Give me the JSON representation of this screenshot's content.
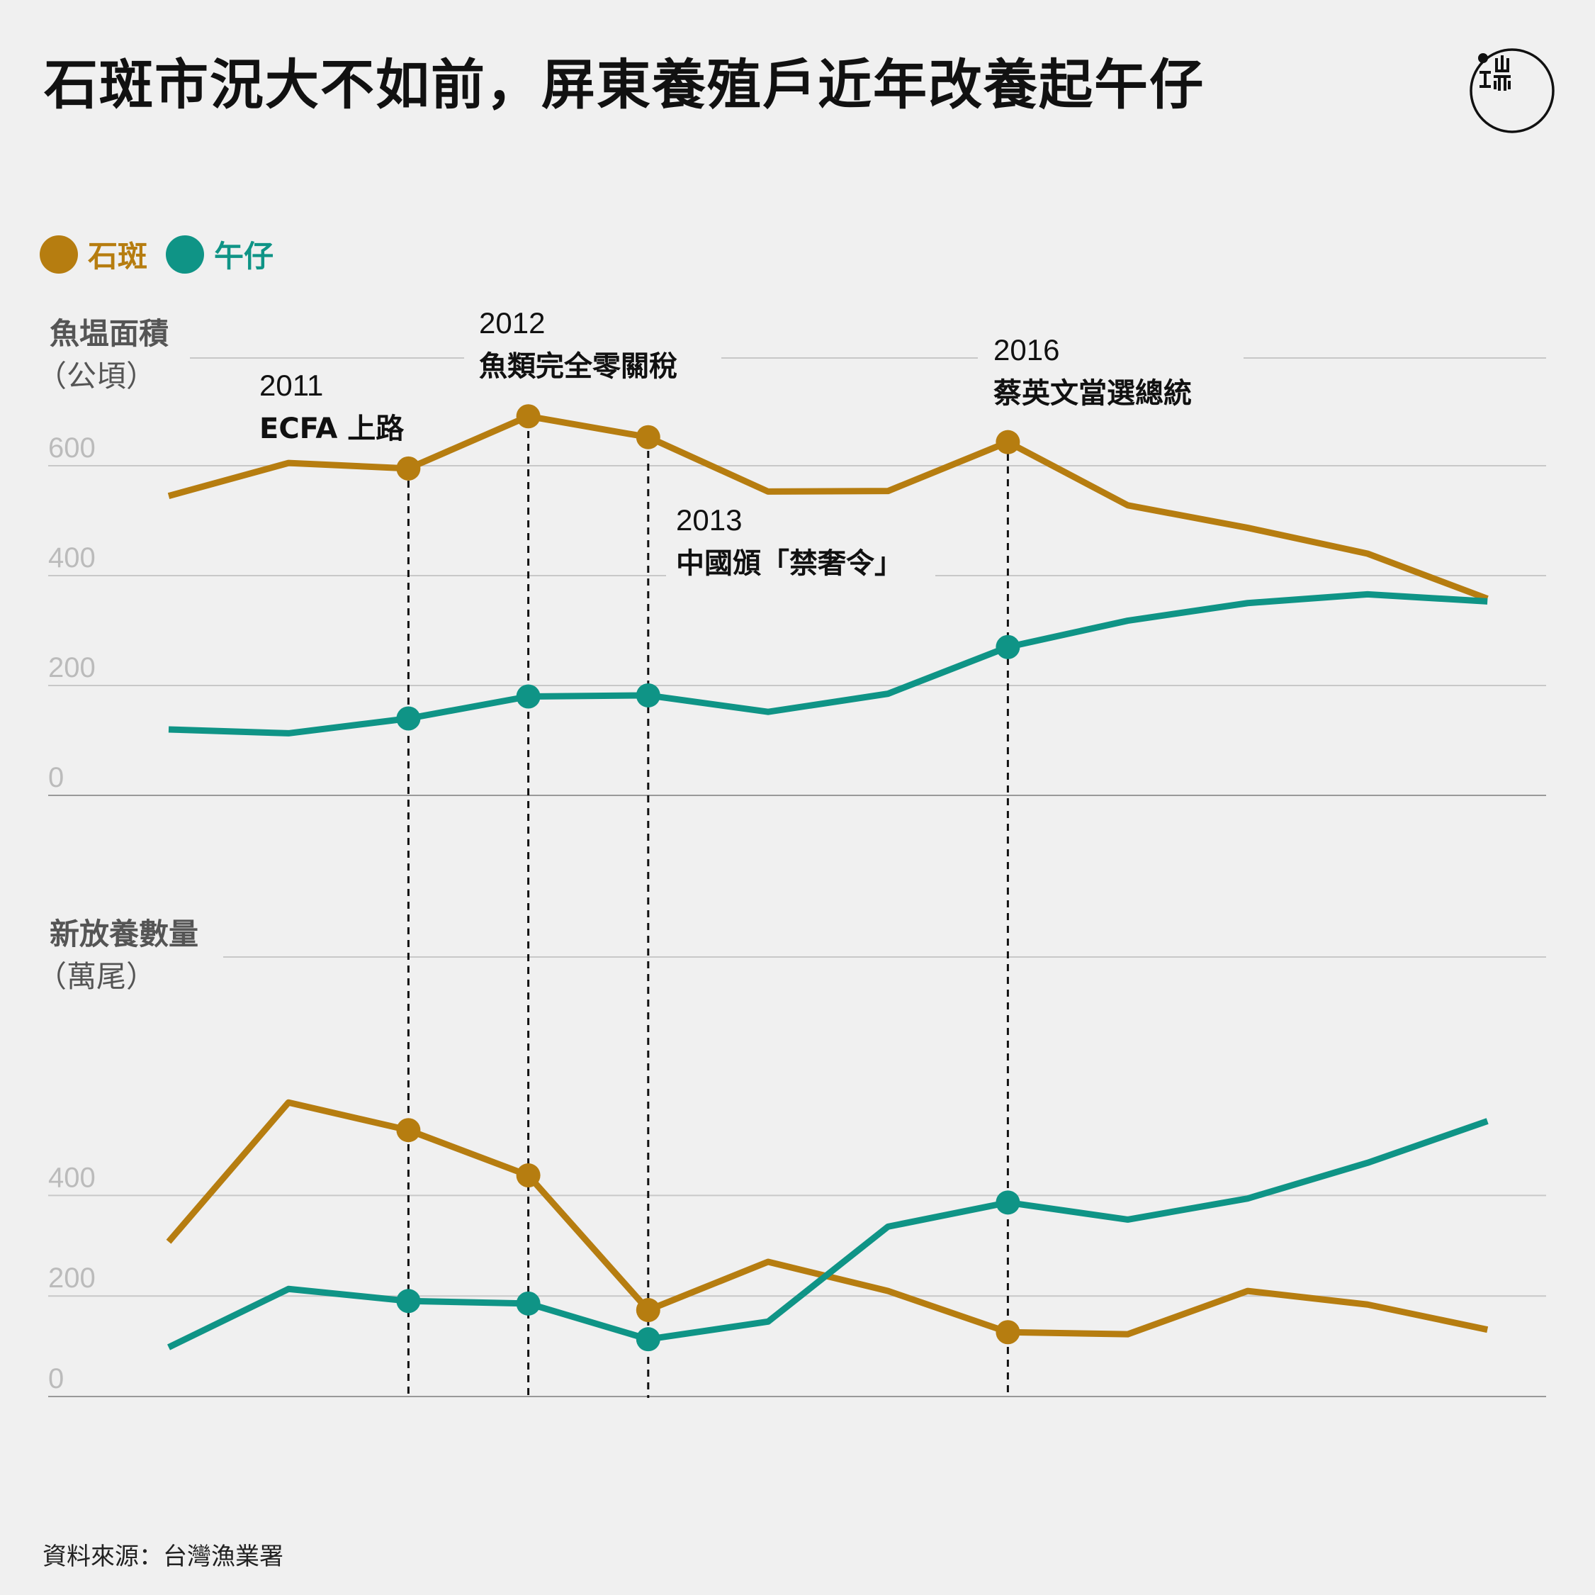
{
  "title": "石斑市況大不如前，屏東養殖戶近年改養起午仔",
  "colors": {
    "grouper": "#b67d10",
    "threadfin": "#0f9486",
    "grid": "#c8c8c8",
    "background": "#f0f0f0"
  },
  "legend": [
    {
      "label": "石斑",
      "color": "#b67d10"
    },
    {
      "label": "午仔",
      "color": "#0f9486"
    }
  ],
  "logo": {
    "icon": "initium-logo-icon"
  },
  "source": "資料來源：台灣漁業署",
  "chart_data": [
    {
      "type": "line",
      "ylabel": "魚塭面積",
      "yunit": "（公頃）",
      "ylim": [
        0,
        700
      ],
      "yticks": [
        0,
        200,
        400,
        600
      ],
      "x": [
        2008,
        2009,
        2010,
        2011,
        2012,
        2013,
        2014,
        2015,
        2016,
        2017,
        2018,
        2019,
        2020
      ],
      "series": [
        {
          "name": "石斑",
          "values": [
            545,
            605,
            595,
            690,
            652,
            553,
            554,
            643,
            528,
            487,
            440,
            358,
            null
          ],
          "markers": [
            2010,
            2011,
            2012,
            2015
          ]
        },
        {
          "name": "午仔",
          "values": [
            120,
            113,
            140,
            180,
            182,
            152,
            185,
            270,
            318,
            350,
            366,
            353,
            null
          ],
          "markers": [
            2010,
            2011,
            2012,
            2015
          ]
        }
      ],
      "grid": true
    },
    {
      "type": "line",
      "ylabel": "新放養數量",
      "yunit": "（萬尾）",
      "ylim": [
        0,
        600
      ],
      "yticks": [
        0,
        200,
        400
      ],
      "x": [
        2008,
        2009,
        2010,
        2011,
        2012,
        2013,
        2014,
        2015,
        2016,
        2017,
        2018,
        2019,
        2020
      ],
      "series": [
        {
          "name": "石斑",
          "values": [
            308,
            585,
            530,
            440,
            172,
            268,
            210,
            128,
            124,
            210,
            183,
            133,
            null
          ],
          "markers": [
            2010,
            2011,
            2012,
            2015
          ]
        },
        {
          "name": "午仔",
          "values": [
            98,
            214,
            190,
            185,
            114,
            149,
            338,
            386,
            352,
            394,
            465,
            548,
            null
          ],
          "markers": [
            2010,
            2011,
            2012,
            2015
          ]
        }
      ],
      "grid": true
    }
  ],
  "annotations": [
    {
      "year": "2011",
      "text": "ECFA 上路",
      "x": 2010
    },
    {
      "year": "2012",
      "text": "魚類完全零關稅",
      "x": 2011
    },
    {
      "year": "2013",
      "text": "中國頒「禁奢令」",
      "x": 2012
    },
    {
      "year": "2016",
      "text": "蔡英文當選總統",
      "x": 2015
    }
  ]
}
